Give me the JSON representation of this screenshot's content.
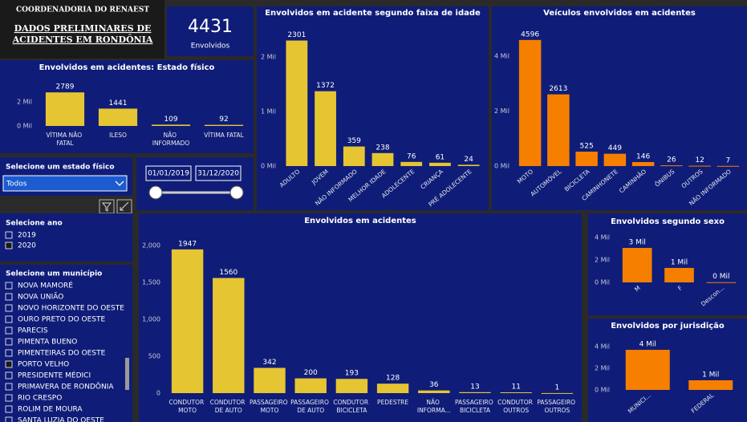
{
  "header": {
    "line1": "COORDENADORIA DO RENAEST",
    "line2": "DADOS PRELIMINARES DE",
    "line3": "ACIDENTES EM RONDÔNIA"
  },
  "kpi": {
    "value": 4431,
    "label": "Envolvidos"
  },
  "slicers": {
    "estado_fisico": {
      "title": "Selecione um estado físico",
      "selected": "Todos"
    },
    "periodo": {
      "start": "01/01/2019",
      "end": "31/12/2020"
    },
    "ano": {
      "title": "Selecione ano",
      "options": [
        {
          "label": "2019",
          "checked": false
        },
        {
          "label": "2020",
          "checked": true
        }
      ]
    },
    "municipio": {
      "title": "Selecione um município",
      "options": [
        {
          "label": "NOVA MAMORÉ",
          "checked": false
        },
        {
          "label": "NOVA UNIÃO",
          "checked": false
        },
        {
          "label": "NOVO HORIZONTE DO OESTE",
          "checked": false
        },
        {
          "label": "OURO PRETO DO OESTE",
          "checked": false
        },
        {
          "label": "PARECIS",
          "checked": false
        },
        {
          "label": "PIMENTA BUENO",
          "checked": false
        },
        {
          "label": "PIMENTEIRAS DO OESTE",
          "checked": false
        },
        {
          "label": "PORTO VELHO",
          "checked": true
        },
        {
          "label": "PRESIDENTE MÉDICI",
          "checked": false
        },
        {
          "label": "PRIMAVERA DE RONDÔNIA",
          "checked": false
        },
        {
          "label": "RIO CRESPO",
          "checked": false
        },
        {
          "label": "ROLIM DE MOURA",
          "checked": false
        },
        {
          "label": "SANTA LUZIA DO OESTE",
          "checked": false
        }
      ]
    }
  },
  "chart_data": [
    {
      "type": "bar",
      "title": "Envolvidos em acidentes: Estado físico",
      "categories": [
        "VÍTIMA NÃO FATAL",
        "ILESO",
        "NÃO INFORMADO",
        "VÍTIMA FATAL"
      ],
      "values": [
        2789,
        1441,
        109,
        92
      ],
      "color": "#e6c532",
      "grid": false,
      "ylim": [
        0,
        3200
      ],
      "yticks": [
        {
          "value": 0,
          "label": "0 Mil"
        },
        {
          "value": 2000,
          "label": "2 Mil"
        }
      ]
    },
    {
      "type": "bar",
      "title": "Envolvidos em acidente segundo faixa de idade",
      "categories": [
        "ADULTO",
        "JOVEM",
        "NÃO INFORMADO",
        "MELHOR IDADE",
        "ADOLECENTE",
        "CRIANÇA",
        "PRÉ ADOLECENTE"
      ],
      "values": [
        2301,
        1372,
        359,
        238,
        76,
        61,
        24
      ],
      "color": "#e6c532",
      "grid": false,
      "ylim": [
        0,
        2500
      ],
      "yticks": [
        {
          "value": 0,
          "label": "0 Mil"
        },
        {
          "value": 1000,
          "label": "1 Mil"
        },
        {
          "value": 2000,
          "label": "2 Mil"
        }
      ]
    },
    {
      "type": "bar",
      "title": "Veículos envolvidos em acidentes",
      "categories": [
        "MOTO",
        "AUTOMÓVEL",
        "BICICLETA",
        "CAMINHONETE",
        "CAMINHÃO",
        "ÔNIBUS",
        "OUTROS",
        "NÃO INFORMADO"
      ],
      "values": [
        4596,
        2613,
        525,
        449,
        146,
        26,
        12,
        7
      ],
      "color": "#f77f00",
      "grid": false,
      "ylim": [
        0,
        5000
      ],
      "yticks": [
        {
          "value": 0,
          "label": "0 Mil"
        },
        {
          "value": 2000,
          "label": "2 Mil"
        },
        {
          "value": 4000,
          "label": "4 Mil"
        }
      ]
    },
    {
      "type": "bar",
      "title": "Envolvidos em acidentes",
      "categories": [
        "CONDUTOR MOTO",
        "CONDUTOR DE AUTO",
        "PASSAGEIRO MOTO",
        "PASSAGEIRO DE AUTO",
        "CONDUTOR BICICLETA",
        "PEDESTRE",
        "NÃO INFORMA...",
        "PASSAGEIRO BICICLETA",
        "CONDUTOR OUTROS",
        "PASSAGEIRO OUTROS"
      ],
      "values": [
        1947,
        1560,
        342,
        200,
        193,
        128,
        36,
        13,
        11,
        1
      ],
      "color": "#e6c532",
      "grid": false,
      "ylim": [
        0,
        2100
      ],
      "yticks": [
        0,
        500,
        {
          "value": 1000,
          "label": "1,000"
        },
        {
          "value": 1500,
          "label": "1,500"
        },
        {
          "value": 2000,
          "label": "2,000"
        }
      ]
    },
    {
      "type": "bar",
      "title": "Envolvidos segundo sexo",
      "categories": [
        "M",
        "F",
        "Descon..."
      ],
      "values": [
        3070,
        1290,
        20
      ],
      "value_labels": [
        "3 Mil",
        "1 Mil",
        "0 Mil"
      ],
      "color": "#f77f00",
      "grid": false,
      "ylim": [
        0,
        4000
      ],
      "yticks": [
        {
          "value": 0,
          "label": "0 Mil"
        },
        {
          "value": 2000,
          "label": "2 Mil"
        },
        {
          "value": 4000,
          "label": "4 Mil"
        }
      ]
    },
    {
      "type": "bar",
      "title": "Envolvidos por jurisdição",
      "categories": [
        "MUNICI...",
        "FEDERAL"
      ],
      "values": [
        3700,
        890
      ],
      "value_labels": [
        "4 Mil",
        "1 Mil"
      ],
      "color": "#f77f00",
      "grid": false,
      "ylim": [
        0,
        4000
      ],
      "yticks": [
        {
          "value": 0,
          "label": "0 Mil"
        },
        {
          "value": 2000,
          "label": "2 Mil"
        },
        {
          "value": 4000,
          "label": "4 Mil"
        }
      ]
    }
  ]
}
